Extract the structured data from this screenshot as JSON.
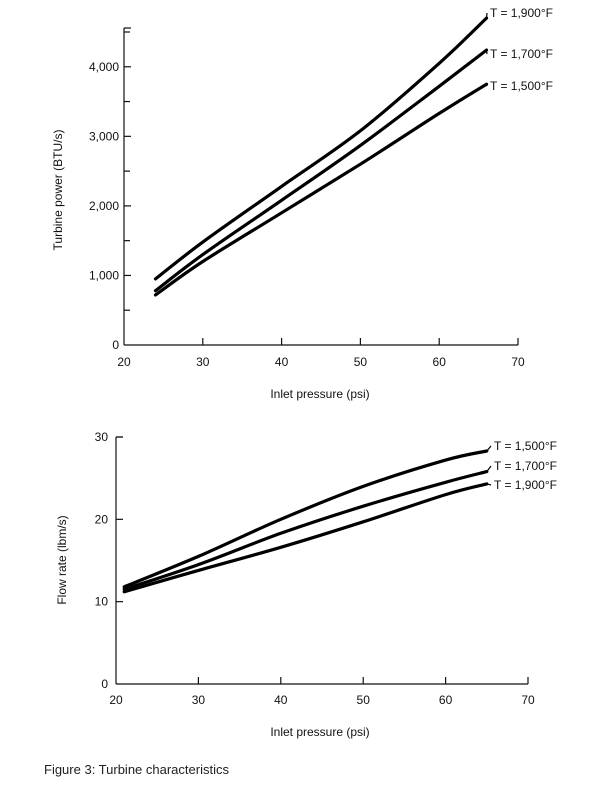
{
  "caption": "Figure 3: Turbine characteristics",
  "chart_data": [
    {
      "type": "line",
      "xlabel": "Inlet pressure (psi)",
      "ylabel": "Turbine power (BTU/s)",
      "xlim": [
        20,
        70
      ],
      "ylim": [
        0,
        4500
      ],
      "x_ticks": [
        "20",
        "30",
        "40",
        "50",
        "60",
        "70"
      ],
      "y_ticks": [
        "0",
        "1,000",
        "2,000",
        "3,000",
        "4,000"
      ],
      "series": [
        {
          "name": "T = 1,900°F",
          "x": [
            24,
            30,
            40,
            50,
            60,
            66
          ],
          "values": [
            950,
            1480,
            2280,
            3080,
            4050,
            4700
          ]
        },
        {
          "name": "T = 1,700°F",
          "x": [
            24,
            30,
            40,
            50,
            60,
            66
          ],
          "values": [
            780,
            1300,
            2080,
            2870,
            3720,
            4240
          ]
        },
        {
          "name": "T = 1,500°F",
          "x": [
            24,
            30,
            40,
            50,
            60,
            66
          ],
          "values": [
            720,
            1200,
            1900,
            2600,
            3330,
            3750
          ]
        }
      ]
    },
    {
      "type": "line",
      "xlabel": "Inlet pressure (psi)",
      "ylabel": "Flow rate (lbm/s)",
      "xlim": [
        20,
        70
      ],
      "ylim": [
        0,
        30
      ],
      "x_ticks": [
        "20",
        "30",
        "40",
        "50",
        "60",
        "70"
      ],
      "y_ticks": [
        "0",
        "10",
        "20",
        "30"
      ],
      "series": [
        {
          "name": "T = 1,500°F",
          "x": [
            21,
            30,
            40,
            50,
            60,
            65
          ],
          "values": [
            11.8,
            15.5,
            20.0,
            24.0,
            27.2,
            28.3
          ]
        },
        {
          "name": "T = 1,700°F",
          "x": [
            21,
            30,
            40,
            50,
            60,
            65
          ],
          "values": [
            11.5,
            14.5,
            18.3,
            21.6,
            24.5,
            25.8
          ]
        },
        {
          "name": "T = 1,900°F",
          "x": [
            21,
            30,
            40,
            50,
            60,
            65
          ],
          "values": [
            11.2,
            13.8,
            16.6,
            19.7,
            23.0,
            24.3
          ]
        }
      ]
    }
  ]
}
